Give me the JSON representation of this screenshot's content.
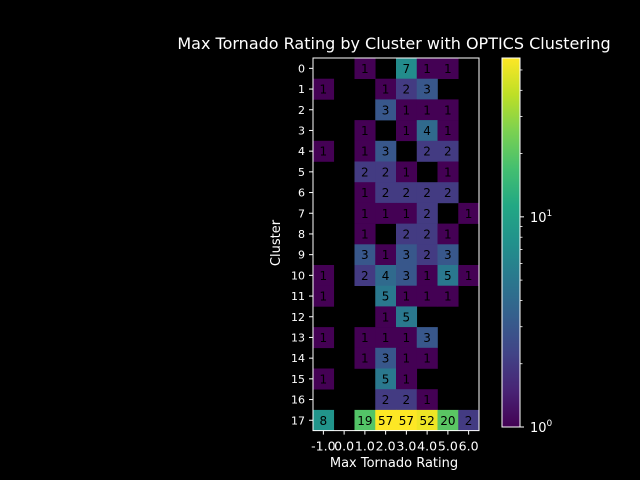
{
  "chart_data": {
    "type": "heatmap",
    "title": "Max Tornado Rating by Cluster with OPTICS Clustering",
    "xlabel": "Max Tornado Rating",
    "ylabel": "Cluster",
    "x_categories": [
      "-1.0",
      "0.0",
      "1.0",
      "2.0",
      "3.0",
      "4.0",
      "5.0",
      "6.0"
    ],
    "y_categories": [
      "0",
      "1",
      "2",
      "3",
      "4",
      "5",
      "6",
      "7",
      "8",
      "9",
      "10",
      "11",
      "12",
      "13",
      "14",
      "15",
      "16",
      "17"
    ],
    "values": [
      [
        null,
        null,
        1,
        null,
        7,
        1,
        1,
        null
      ],
      [
        1,
        null,
        null,
        1,
        2,
        3,
        null,
        null
      ],
      [
        null,
        null,
        null,
        3,
        1,
        1,
        1,
        null
      ],
      [
        null,
        null,
        1,
        null,
        1,
        4,
        1,
        null
      ],
      [
        1,
        null,
        1,
        3,
        null,
        2,
        2,
        null
      ],
      [
        null,
        null,
        2,
        2,
        1,
        null,
        1,
        null
      ],
      [
        null,
        null,
        1,
        2,
        2,
        2,
        2,
        null
      ],
      [
        null,
        null,
        1,
        1,
        1,
        2,
        null,
        1
      ],
      [
        null,
        null,
        1,
        null,
        2,
        2,
        1,
        null
      ],
      [
        null,
        null,
        3,
        1,
        3,
        2,
        3,
        null
      ],
      [
        1,
        null,
        2,
        4,
        3,
        1,
        5,
        1
      ],
      [
        1,
        null,
        null,
        5,
        1,
        1,
        1,
        null
      ],
      [
        null,
        null,
        null,
        1,
        5,
        null,
        null,
        null
      ],
      [
        1,
        null,
        1,
        1,
        1,
        3,
        null,
        null
      ],
      [
        null,
        null,
        1,
        3,
        1,
        1,
        null,
        null
      ],
      [
        1,
        null,
        null,
        5,
        1,
        null,
        null,
        null
      ],
      [
        null,
        null,
        null,
        2,
        2,
        1,
        null,
        null
      ],
      [
        8,
        null,
        19,
        57,
        57,
        52,
        20,
        2
      ]
    ],
    "colorbar": {
      "scale": "log",
      "colormap": "viridis",
      "range": [
        1,
        57
      ],
      "tick_labels": [
        {
          "value": 1,
          "base": "10",
          "exp": "0"
        },
        {
          "value": 10,
          "base": "10",
          "exp": "1"
        }
      ]
    }
  }
}
